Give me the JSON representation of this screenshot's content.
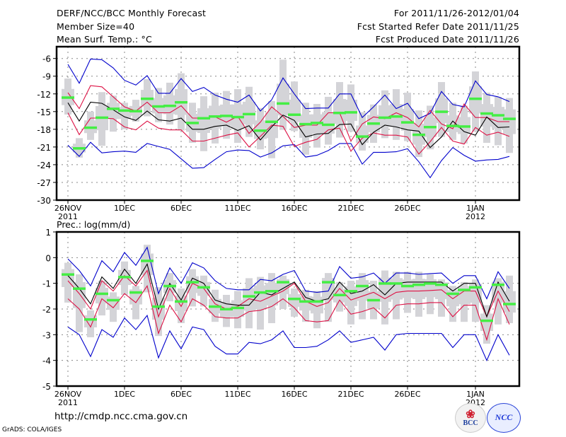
{
  "header": {
    "title": "DERF/NCC/BCC Monthly Forecast",
    "member_size": "Member Size=40",
    "variable": "Mean Surf. Temp.: °C",
    "period": "For 2011/11/26-2012/01/04",
    "start_date": "Fcst Started Refer Date 2011/11/25",
    "produced_date": "Fcst Produced Date 2011/11/26"
  },
  "footer": {
    "url": "http://cmdp.ncc.cma.gov.cn",
    "credit": "GrADS: COLA/IGES",
    "logo_left": "BCC",
    "logo_right": "NCC"
  },
  "colors": {
    "max_min": "#0000cc",
    "quartile": "#dd1144",
    "median": "#000000",
    "mean_marker": "#44ee44",
    "box": "#d4d4d8",
    "grid": "#888888"
  },
  "chart_data": [
    {
      "type": "line",
      "title": "Mean Surf. Temp.: °C",
      "ylim": [
        -30,
        -4
      ],
      "yticks": [
        -6,
        -9,
        -12,
        -15,
        -18,
        -21,
        -24,
        -27,
        -30
      ],
      "xticks": [
        {
          "day": 0,
          "label": "26NOV",
          "sub": "2011"
        },
        {
          "day": 5,
          "label": "1DEC",
          "sub": ""
        },
        {
          "day": 10,
          "label": "6DEC",
          "sub": ""
        },
        {
          "day": 15,
          "label": "11DEC",
          "sub": ""
        },
        {
          "day": 20,
          "label": "16DEC",
          "sub": ""
        },
        {
          "day": 25,
          "label": "21DEC",
          "sub": ""
        },
        {
          "day": 30,
          "label": "26DEC",
          "sub": ""
        },
        {
          "day": 36,
          "label": "1JAN",
          "sub": "2012"
        }
      ],
      "grid": true,
      "series": [
        {
          "name": "max",
          "role": "max_min",
          "values": [
            -7,
            -10.2,
            -6.1,
            -6.2,
            -7.6,
            -9.7,
            -10.5,
            -8.9,
            -11.9,
            -11.9,
            -9.4,
            -11.6,
            -10.9,
            -12.2,
            -12.9,
            -13.4,
            -12.2,
            -14.9,
            -13.0,
            -9.3,
            -12.0,
            -14.5,
            -14.4,
            -14.4,
            -12.0,
            -12.0,
            -16.0,
            -14.2,
            -12.2,
            -14.5,
            -13.6,
            -16.2,
            -15.3,
            -11.6,
            -13.8,
            -14.2,
            -9.8,
            -12.1,
            -12.5,
            -13.3
          ]
        },
        {
          "name": "upper_quartile",
          "role": "quartile",
          "values": [
            -11.8,
            -14.5,
            -10.6,
            -10.8,
            -12.5,
            -14.2,
            -14.9,
            -13.4,
            -15.2,
            -15.2,
            -14.0,
            -16.1,
            -16.1,
            -15.9,
            -16.8,
            -15.8,
            -18.7,
            -16.8,
            -14.2,
            -15.8,
            -17.7,
            -17.3,
            -17.3,
            -15.2,
            -15.2,
            -20.0,
            -17.1,
            -15.9,
            -16.2,
            -15.2,
            -16.0,
            -17.6,
            -14.8,
            -17.1,
            -17.9,
            -13.7,
            -16.0,
            -16.0,
            -16.7,
            -16.7
          ]
        },
        {
          "name": "median",
          "role": "median",
          "values": [
            -13.5,
            -16.6,
            -13.4,
            -13.6,
            -14.7,
            -15.9,
            -16.5,
            -14.9,
            -16.4,
            -16.6,
            -16.1,
            -18.0,
            -18.0,
            -17.5,
            -17.3,
            -18.2,
            -17.4,
            -19.8,
            -17.6,
            -15.6,
            -16.5,
            -19.3,
            -18.8,
            -18.7,
            -17.2,
            -17.1,
            -20.6,
            -18.5,
            -17.3,
            -17.6,
            -18.1,
            -18.3,
            -21.1,
            -19.3,
            -16.6,
            -18.4,
            -19.0,
            -15.9,
            -17.7,
            -17.6
          ]
        },
        {
          "name": "lower_quartile",
          "role": "quartile",
          "values": [
            -15.2,
            -18.9,
            -16.1,
            -16.1,
            -16.2,
            -17.6,
            -18.1,
            -16.6,
            -17.8,
            -18.1,
            -18.1,
            -20.0,
            -20.0,
            -19.5,
            -19.0,
            -18.6,
            -21.0,
            -19.2,
            -17.3,
            -17.5,
            -20.9,
            -20.2,
            -19.7,
            -18.1,
            -17.8,
            -21.7,
            -19.5,
            -18.6,
            -19.0,
            -19.0,
            -19.3,
            -22.2,
            -20.1,
            -17.7,
            -20.0,
            -20.5,
            -17.7,
            -19.0,
            -18.5,
            -19.2
          ]
        },
        {
          "name": "min",
          "role": "max_min",
          "values": [
            -20.7,
            -22.6,
            -20.2,
            -22.0,
            -21.8,
            -21.7,
            -21.9,
            -20.4,
            -20.9,
            -21.4,
            -23.0,
            -24.6,
            -24.5,
            -23.1,
            -21.8,
            -21.5,
            -21.6,
            -22.7,
            -22.0,
            -20.8,
            -20.6,
            -22.7,
            -22.4,
            -21.6,
            -20.4,
            -20.4,
            -23.9,
            -21.9,
            -21.9,
            -21.8,
            -21.3,
            -23.5,
            -26.2,
            -23.3,
            -21.1,
            -22.4,
            -23.4,
            -23.2,
            -23.1,
            -22.6
          ]
        },
        {
          "name": "ensemble_mean",
          "role": "mean_marker",
          "values": [
            -12.6,
            -21.2,
            -17.7,
            -16.0,
            -14.5,
            -14.8,
            -14.9,
            -12.8,
            -14.1,
            -14.0,
            -13.4,
            -16.9,
            -16.1,
            -15.8,
            -15.7,
            -15.9,
            -15.4,
            -18.2,
            -16.7,
            -13.6,
            -15.5,
            -17.1,
            -16.9,
            -17.2,
            -15.2,
            -15.1,
            -19.2,
            -17.0,
            -16.0,
            -15.8,
            -16.8,
            -18.9,
            -17.6,
            -15.0,
            -17.4,
            -17.5,
            -12.8,
            -15.3,
            -15.6,
            -16.2
          ]
        },
        {
          "name": "box_outer_low",
          "role": "box",
          "values": [
            -15.5,
            -22.8,
            -19.8,
            -20.8,
            -18.4,
            -18.0,
            -16.7,
            -15.8,
            -16.8,
            -17.2,
            -18.2,
            -20.3,
            -21.7,
            -20.4,
            -19.6,
            -20.3,
            -19.3,
            -21.4,
            -22.9,
            -18.1,
            -18.3,
            -22.3,
            -21.1,
            -20.6,
            -19.4,
            -18.4,
            -21.6,
            -20.3,
            -19.5,
            -19.8,
            -20.0,
            -22.7,
            -21.4,
            -19.3,
            -19.8,
            -20.4,
            -18.4,
            -20.3,
            -20.7,
            -22.0
          ]
        },
        {
          "name": "box_outer_high",
          "role": "box",
          "values": [
            -9.4,
            -19.5,
            -15.0,
            -11.7,
            -12.3,
            -13.5,
            -13.0,
            -9.5,
            -11.0,
            -10.1,
            -8.5,
            -13.5,
            -12.4,
            -11.8,
            -11.5,
            -11.2,
            -10.8,
            -14.4,
            -13.2,
            -6.2,
            -9.9,
            -13.5,
            -13.7,
            -12.5,
            -10.0,
            -10.4,
            -15.1,
            -13.8,
            -11.4,
            -11.2,
            -11.8,
            -14.8,
            -14.0,
            -10.0,
            -13.5,
            -14.0,
            -8.2,
            -11.8,
            -12.5,
            -12.7
          ]
        }
      ]
    },
    {
      "type": "line",
      "title": "Prec.: log(mm/d)",
      "ylim": [
        -5,
        1
      ],
      "yticks": [
        1,
        0,
        -1,
        -2,
        -3,
        -4,
        -5
      ],
      "xticks": [
        {
          "day": 0,
          "label": "26NOV",
          "sub": "2011"
        },
        {
          "day": 5,
          "label": "1DEC",
          "sub": ""
        },
        {
          "day": 10,
          "label": "6DEC",
          "sub": ""
        },
        {
          "day": 15,
          "label": "11DEC",
          "sub": ""
        },
        {
          "day": 20,
          "label": "16DEC",
          "sub": ""
        },
        {
          "day": 25,
          "label": "21DEC",
          "sub": ""
        },
        {
          "day": 30,
          "label": "26DEC",
          "sub": ""
        },
        {
          "day": 36,
          "label": "1JAN",
          "sub": "2012"
        }
      ],
      "grid": true,
      "series": [
        {
          "name": "max",
          "role": "max_min",
          "values": [
            -0.05,
            -0.5,
            -1.1,
            -0.12,
            -0.55,
            0.2,
            -0.3,
            0.4,
            -1.4,
            -0.4,
            -1.0,
            -0.2,
            -0.4,
            -0.9,
            -1.2,
            -1.25,
            -1.25,
            -0.85,
            -0.9,
            -0.65,
            -0.5,
            -1.3,
            -1.35,
            -1.3,
            -0.35,
            -0.8,
            -0.75,
            -0.6,
            -1.0,
            -0.6,
            -0.6,
            -0.65,
            -0.62,
            -0.6,
            -1.0,
            -0.7,
            -0.7,
            -1.6,
            -0.55,
            -1.2
          ]
        },
        {
          "name": "upper_quartile",
          "role": "quartile",
          "values": [
            -0.9,
            -1.4,
            -2.0,
            -0.9,
            -1.3,
            -0.7,
            -1.1,
            -0.5,
            -2.3,
            -1.2,
            -1.9,
            -1.0,
            -1.2,
            -1.8,
            -2.0,
            -1.9,
            -1.6,
            -1.7,
            -1.5,
            -1.3,
            -1.0,
            -1.7,
            -1.9,
            -1.75,
            -1.2,
            -1.65,
            -1.5,
            -1.35,
            -1.6,
            -1.35,
            -1.3,
            -1.3,
            -1.28,
            -1.25,
            -1.6,
            -1.3,
            -1.3,
            -2.3,
            -1.3,
            -2.1
          ]
        },
        {
          "name": "median",
          "role": "median",
          "values": [
            -0.7,
            -1.2,
            -1.8,
            -0.75,
            -1.2,
            -0.45,
            -1.0,
            -0.25,
            -2.0,
            -1.0,
            -1.65,
            -0.8,
            -1.0,
            -1.65,
            -1.8,
            -1.85,
            -1.85,
            -1.35,
            -1.45,
            -1.2,
            -0.95,
            -1.55,
            -1.7,
            -1.6,
            -0.95,
            -1.4,
            -1.3,
            -1.05,
            -1.45,
            -1.0,
            -0.95,
            -0.95,
            -0.95,
            -0.95,
            -1.3,
            -1.0,
            -1.0,
            -2.3,
            -0.95,
            -1.7
          ]
        },
        {
          "name": "lower_quartile",
          "role": "quartile",
          "values": [
            -1.6,
            -2.0,
            -2.7,
            -1.6,
            -1.95,
            -1.4,
            -1.75,
            -1.1,
            -2.95,
            -1.85,
            -2.5,
            -1.6,
            -1.85,
            -2.3,
            -2.35,
            -2.35,
            -2.1,
            -2.05,
            -1.9,
            -1.6,
            -1.95,
            -2.45,
            -2.5,
            -2.45,
            -1.65,
            -2.2,
            -2.1,
            -1.95,
            -2.35,
            -1.85,
            -1.8,
            -1.8,
            -1.75,
            -1.75,
            -2.3,
            -1.85,
            -1.85,
            -3.2,
            -1.6,
            -2.6
          ]
        },
        {
          "name": "min",
          "role": "max_min",
          "values": [
            -2.7,
            -3.0,
            -3.85,
            -2.8,
            -3.1,
            -2.35,
            -2.8,
            -2.25,
            -3.9,
            -2.85,
            -3.55,
            -2.7,
            -2.8,
            -3.45,
            -3.75,
            -3.75,
            -3.3,
            -3.35,
            -3.2,
            -2.85,
            -3.5,
            -3.5,
            -3.45,
            -3.2,
            -2.85,
            -3.3,
            -3.2,
            -3.1,
            -3.6,
            -3.0,
            -2.95,
            -2.95,
            -2.95,
            -2.95,
            -3.5,
            -3.0,
            -3.0,
            -4.0,
            -3.0,
            -3.8
          ]
        },
        {
          "name": "ensemble_mean",
          "role": "mean_marker",
          "values": [
            -0.65,
            -1.2,
            -2.4,
            -1.4,
            -1.65,
            -0.75,
            -1.35,
            -0.12,
            -1.9,
            -1.1,
            -1.7,
            -0.95,
            -1.15,
            -1.9,
            -2.0,
            -1.95,
            -1.5,
            -1.35,
            -1.3,
            -0.95,
            -1.6,
            -1.7,
            -1.7,
            -0.95,
            -1.45,
            -1.3,
            -1.1,
            -1.65,
            -1.0,
            -1.0,
            -1.1,
            -1.05,
            -1.0,
            -1.05,
            -1.4,
            -1.25,
            -1.15,
            -2.45,
            -1.05,
            -1.8
          ]
        },
        {
          "name": "box_outer_low",
          "role": "box",
          "values": [
            -1.75,
            -2.9,
            -3.1,
            -2.25,
            -2.5,
            -1.45,
            -2.4,
            -1.35,
            -3.05,
            -1.7,
            -2.55,
            -1.9,
            -1.9,
            -2.5,
            -2.7,
            -2.75,
            -2.75,
            -2.8,
            -2.55,
            -2.0,
            -2.3,
            -2.5,
            -2.75,
            -2.5,
            -2.1,
            -2.6,
            -2.4,
            -2.4,
            -2.6,
            -2.4,
            -2.15,
            -2.3,
            -2.2,
            -2.3,
            -2.5,
            -2.5,
            -2.5,
            -3.35,
            -2.6,
            -2.55
          ]
        },
        {
          "name": "box_outer_high",
          "role": "box",
          "values": [
            -0.2,
            -0.65,
            -2.05,
            -0.9,
            -1.35,
            -0.15,
            -1.1,
            0.5,
            -1.15,
            -0.6,
            -1.2,
            -0.45,
            -0.7,
            -1.25,
            -1.45,
            -1.3,
            -0.8,
            -0.75,
            -0.6,
            -0.7,
            -1.2,
            -1.25,
            -1.3,
            -0.6,
            -0.95,
            -0.9,
            -0.6,
            -0.9,
            -0.5,
            -0.55,
            -0.55,
            -0.55,
            -0.65,
            -0.85,
            -1.1,
            -0.95,
            -0.85,
            -1.85,
            -0.8,
            -0.7
          ]
        }
      ]
    }
  ]
}
